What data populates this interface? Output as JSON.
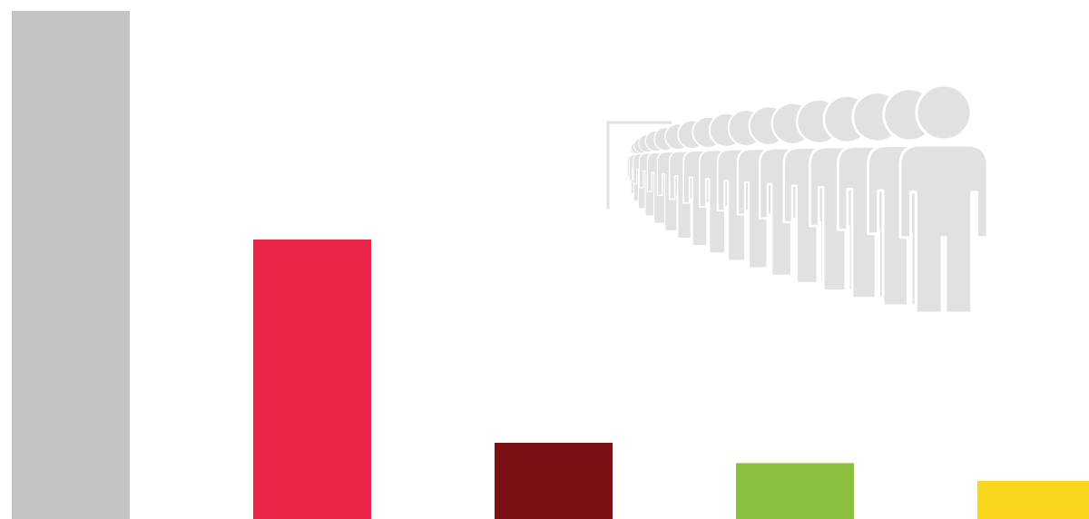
{
  "chart_data": {
    "type": "bar",
    "title": "",
    "xlabel": "",
    "ylabel": "",
    "grid": false,
    "legend": "none",
    "ylim": [
      0,
      100
    ],
    "categories": [
      "",
      "",
      "",
      "",
      ""
    ],
    "values": [
      100,
      55,
      15,
      11,
      7.5
    ],
    "colors": [
      "#c4c3c4",
      "#ea2548",
      "#7a1013",
      "#8cc13f",
      "#fbd61e"
    ]
  },
  "decoration": {
    "icon": "people-queue-icon",
    "color": "#e0e1e1"
  }
}
